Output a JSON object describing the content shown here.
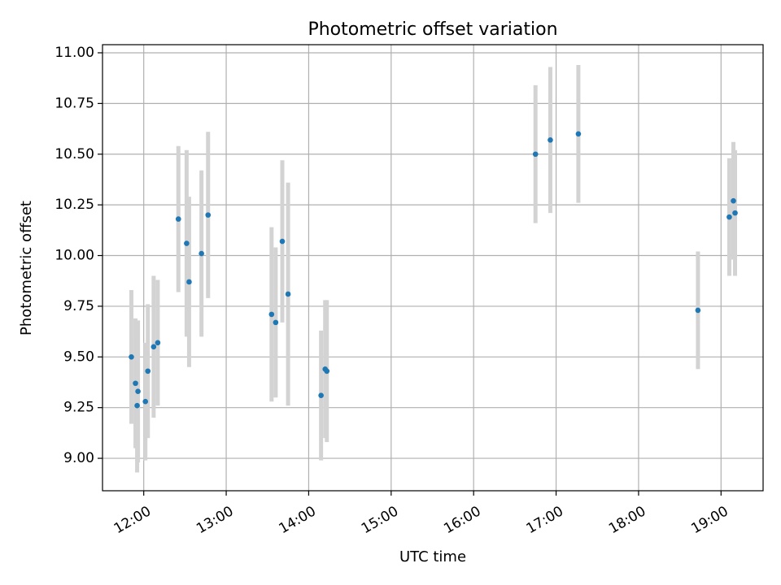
{
  "chart_data": {
    "type": "scatter",
    "title": "Photometric offset variation",
    "xlabel": "UTC time",
    "ylabel": "Photometric offset",
    "x_unit": "hours (UTC)",
    "xlim": [
      11.5,
      19.51
    ],
    "ylim": [
      8.84,
      11.04
    ],
    "x_ticks": [
      12,
      13,
      14,
      15,
      16,
      17,
      18,
      19
    ],
    "x_tick_labels": [
      "12:00",
      "13:00",
      "14:00",
      "15:00",
      "16:00",
      "17:00",
      "18:00",
      "19:00"
    ],
    "y_ticks": [
      9.0,
      9.25,
      9.5,
      9.75,
      10.0,
      10.25,
      10.5,
      10.75,
      11.0
    ],
    "y_tick_labels": [
      "9.00",
      "9.25",
      "9.50",
      "9.75",
      "10.00",
      "10.25",
      "10.50",
      "10.75",
      "11.00"
    ],
    "grid": true,
    "point_color": "#1f77b4",
    "errorbar_color": "#d3d3d3",
    "series": [
      {
        "points": [
          {
            "x": 11.85,
            "y": 9.5,
            "err": 0.33
          },
          {
            "x": 11.9,
            "y": 9.37,
            "err": 0.32
          },
          {
            "x": 11.92,
            "y": 9.26,
            "err": 0.33
          },
          {
            "x": 11.93,
            "y": 9.33,
            "err": 0.35
          },
          {
            "x": 12.02,
            "y": 9.28,
            "err": 0.29
          },
          {
            "x": 12.05,
            "y": 9.43,
            "err": 0.33
          },
          {
            "x": 12.12,
            "y": 9.55,
            "err": 0.35
          },
          {
            "x": 12.17,
            "y": 9.57,
            "err": 0.31
          },
          {
            "x": 12.42,
            "y": 10.18,
            "err": 0.36
          },
          {
            "x": 12.52,
            "y": 10.06,
            "err": 0.46
          },
          {
            "x": 12.55,
            "y": 9.87,
            "err": 0.42
          },
          {
            "x": 12.7,
            "y": 10.01,
            "err": 0.41
          },
          {
            "x": 12.78,
            "y": 10.2,
            "err": 0.41
          },
          {
            "x": 13.55,
            "y": 9.71,
            "err": 0.43
          },
          {
            "x": 13.6,
            "y": 9.67,
            "err": 0.37
          },
          {
            "x": 13.68,
            "y": 10.07,
            "err": 0.4
          },
          {
            "x": 13.75,
            "y": 9.81,
            "err": 0.55
          },
          {
            "x": 14.15,
            "y": 9.31,
            "err": 0.32
          },
          {
            "x": 14.2,
            "y": 9.44,
            "err": 0.34
          },
          {
            "x": 14.22,
            "y": 9.43,
            "err": 0.35
          },
          {
            "x": 16.75,
            "y": 10.5,
            "err": 0.34
          },
          {
            "x": 16.93,
            "y": 10.57,
            "err": 0.36
          },
          {
            "x": 17.27,
            "y": 10.6,
            "err": 0.34
          },
          {
            "x": 18.72,
            "y": 9.73,
            "err": 0.29
          },
          {
            "x": 19.1,
            "y": 10.19,
            "err": 0.29
          },
          {
            "x": 19.15,
            "y": 10.27,
            "err": 0.29
          },
          {
            "x": 19.17,
            "y": 10.21,
            "err": 0.31
          }
        ]
      }
    ]
  }
}
